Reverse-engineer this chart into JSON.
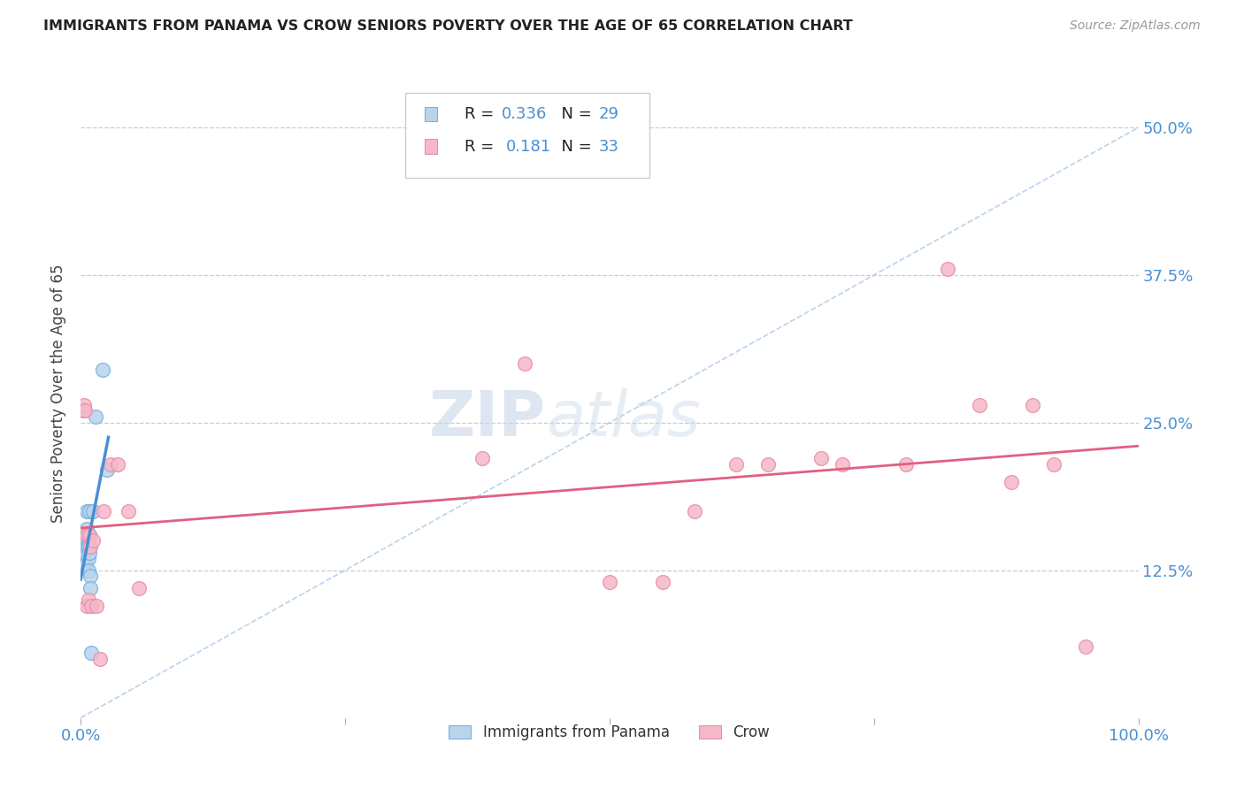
{
  "title": "IMMIGRANTS FROM PANAMA VS CROW SENIORS POVERTY OVER THE AGE OF 65 CORRELATION CHART",
  "source": "Source: ZipAtlas.com",
  "ylabel": "Seniors Poverty Over the Age of 65",
  "y_tick_values": [
    0.125,
    0.25,
    0.375,
    0.5
  ],
  "xlim": [
    0.0,
    1.0
  ],
  "ylim": [
    0.0,
    0.55
  ],
  "legend_label_blue": "Immigrants from Panama",
  "legend_label_pink": "Crow",
  "legend_R_blue": "0.336",
  "legend_N_blue": "29",
  "legend_R_pink": "0.181",
  "legend_N_pink": "33",
  "blue_fill": "#b8d4ed",
  "pink_fill": "#f5b8c8",
  "line_blue": "#4a8fd4",
  "line_pink": "#e06080",
  "dot_edge_blue": "#7ab0e0",
  "dot_edge_pink": "#e890a8",
  "accent_blue": "#4a8fd4",
  "watermark_zip": "ZIP",
  "watermark_atlas": "atlas",
  "blue_points_x": [
    0.001,
    0.002,
    0.002,
    0.003,
    0.003,
    0.003,
    0.004,
    0.004,
    0.005,
    0.005,
    0.005,
    0.006,
    0.006,
    0.006,
    0.007,
    0.007,
    0.007,
    0.007,
    0.008,
    0.008,
    0.008,
    0.009,
    0.009,
    0.01,
    0.01,
    0.012,
    0.014,
    0.021,
    0.025
  ],
  "blue_points_y": [
    0.155,
    0.145,
    0.14,
    0.15,
    0.145,
    0.135,
    0.14,
    0.13,
    0.155,
    0.15,
    0.13,
    0.175,
    0.16,
    0.145,
    0.15,
    0.145,
    0.135,
    0.125,
    0.175,
    0.155,
    0.14,
    0.12,
    0.11,
    0.095,
    0.055,
    0.175,
    0.255,
    0.295,
    0.21
  ],
  "pink_points_x": [
    0.002,
    0.003,
    0.004,
    0.006,
    0.006,
    0.007,
    0.008,
    0.009,
    0.01,
    0.012,
    0.015,
    0.018,
    0.022,
    0.028,
    0.035,
    0.045,
    0.055,
    0.38,
    0.42,
    0.5,
    0.55,
    0.58,
    0.62,
    0.65,
    0.7,
    0.72,
    0.78,
    0.82,
    0.85,
    0.88,
    0.9,
    0.92,
    0.95
  ],
  "pink_points_y": [
    0.26,
    0.265,
    0.26,
    0.155,
    0.095,
    0.1,
    0.155,
    0.145,
    0.095,
    0.15,
    0.095,
    0.05,
    0.175,
    0.215,
    0.215,
    0.175,
    0.11,
    0.22,
    0.3,
    0.115,
    0.115,
    0.175,
    0.215,
    0.215,
    0.22,
    0.215,
    0.215,
    0.38,
    0.265,
    0.2,
    0.265,
    0.215,
    0.06
  ]
}
